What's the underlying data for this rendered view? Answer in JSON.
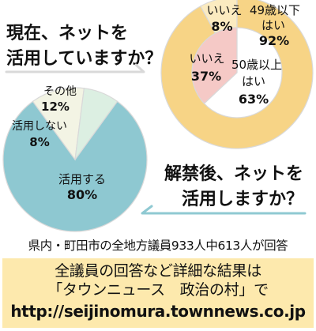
{
  "chart_data": [
    {
      "type": "pie",
      "subtype": "nested-donut",
      "title": "現在、ネットを活用していますか？",
      "title_lines": [
        "現在、ネットを",
        "活用していますか？"
      ],
      "rings": [
        {
          "group": "49歳以下",
          "slices": [
            {
              "label_lines": [
                "49歳以下",
                "はい"
              ],
              "value": 92,
              "display": "92%",
              "color": "#f7d486"
            },
            {
              "label_lines": [
                "いいえ"
              ],
              "value": 8,
              "display": "8%",
              "color": "#fbebc0"
            }
          ]
        },
        {
          "group": "50歳以上",
          "slices": [
            {
              "label_lines": [
                "50歳以上",
                "はい"
              ],
              "value": 63,
              "display": "63%",
              "color": "#ffffff"
            },
            {
              "label_lines": [
                "いいえ"
              ],
              "value": 37,
              "display": "37%",
              "color": "#f5c9c6"
            }
          ]
        }
      ]
    },
    {
      "type": "pie",
      "title": "解禁後、ネットを活用しますか？",
      "title_lines": [
        "解禁後、ネットを",
        "活用しますか？"
      ],
      "slices": [
        {
          "label": "活用する",
          "value": 80,
          "display": "80%",
          "color": "#8ec8d1"
        },
        {
          "label": "活用しない",
          "value": 8,
          "display": "8%",
          "color": "#dcefe2"
        },
        {
          "label": "その他",
          "value": 12,
          "display": "12%",
          "color": "#f3f4e4"
        }
      ]
    }
  ],
  "footnote": "県内・町田市の全地方議員933人中613人が回答",
  "info": {
    "line1": "全議員の回答など詳細な結果は",
    "line2": "「タウンニュース　政治の村」で",
    "url": "http://seijinomura.townnews.co.jp"
  },
  "colors": {
    "outline": "#d9d9d9",
    "arrow": "#8fc9d2",
    "infobox": "#fde9ad"
  }
}
